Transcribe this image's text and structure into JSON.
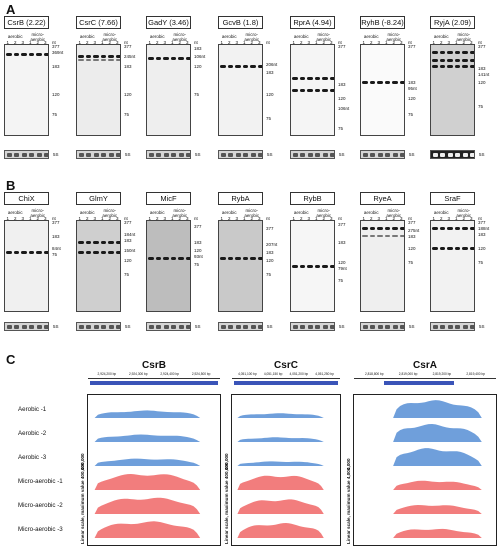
{
  "sections": {
    "a": "A",
    "b": "B",
    "c": "C"
  },
  "gel_common": {
    "aerobic": "aerobic",
    "microaerobic": "micro-\naerobic",
    "lanes": [
      "1",
      "2",
      "3",
      "1",
      "2",
      "3"
    ],
    "nt": "nt",
    "fivesS": "5S"
  },
  "row_a": [
    {
      "title": "CsrB (2.22)",
      "marker_text": [
        "377",
        "369nt",
        "183",
        "120",
        "75"
      ]
    },
    {
      "title": "CsrC (7.66)",
      "marker_text": [
        "377",
        "245nt",
        "183",
        "120",
        "75"
      ]
    },
    {
      "title": "GadY (3.46)",
      "marker_text": [
        "183",
        "106nt",
        "120",
        "75"
      ]
    },
    {
      "title": "GcvB (1.8)",
      "marker_text": [
        "206nt",
        "183",
        "120",
        "75"
      ]
    },
    {
      "title": "RprA (4.94)",
      "marker_text": [
        "377",
        "183",
        "120",
        "106nt",
        "75"
      ]
    },
    {
      "title": "RyhB (-8.24)",
      "marker_text": [
        "377",
        "183",
        "95nt",
        "120",
        "75"
      ]
    },
    {
      "title": "RyjA (2.09)",
      "marker_text": [
        "377",
        "183",
        "141nt",
        "120",
        "75"
      ]
    }
  ],
  "row_b": [
    {
      "title": "ChiX",
      "marker_text": [
        "377",
        "183",
        "84nt",
        "75"
      ]
    },
    {
      "title": "GlmY",
      "marker_text": [
        "377",
        "184nt",
        "183",
        "150nt",
        "120",
        "75"
      ]
    },
    {
      "title": "MicF",
      "marker_text": [
        "377",
        "183",
        "93nt",
        "120",
        "75"
      ]
    },
    {
      "title": "RybA",
      "marker_text": [
        "377",
        "207nt",
        "183",
        "120",
        "75"
      ]
    },
    {
      "title": "RybB",
      "marker_text": [
        "377",
        "183",
        "79nt",
        "120",
        "75"
      ]
    },
    {
      "title": "RyeA",
      "marker_text": [
        "377",
        "275nt",
        "183",
        "120",
        "75"
      ]
    },
    {
      "title": "SraF",
      "marker_text": [
        "377",
        "188nt",
        "183",
        "120",
        "75"
      ]
    }
  ],
  "coverage": {
    "genes": [
      {
        "name": "CsrB",
        "scale": [
          "400,000"
        ],
        "ticks": [
          "2,924,200 bp",
          "2,924,300 bp",
          "2,924,400 bp",
          "2,924,500 bp"
        ]
      },
      {
        "name": "CsrC",
        "scale": [
          "400,000"
        ],
        "ticks": [
          "4,051,100 bp",
          "4,051,150 bp",
          "4,051,200 bp",
          "4,051,250 bp"
        ]
      },
      {
        "name": "CsrA",
        "scale": [
          "4,000"
        ],
        "ticks": [
          "2,818,800 bp",
          "2,819,000 bp",
          "2,819,200 bp",
          "2,819,400 bp"
        ]
      }
    ],
    "ylabel": "Linear scale, maximum value",
    "rows": [
      "Aerobic -1",
      "Aerobic -2",
      "Aerobic -3",
      "Micro-aerobic -1",
      "Micro-aerobic -2",
      "Micro-aerobic -3"
    ],
    "colors": {
      "aerobic": "#6f9fdb",
      "microaerobic": "#f27d7d",
      "gene": "#3a54b8"
    }
  }
}
